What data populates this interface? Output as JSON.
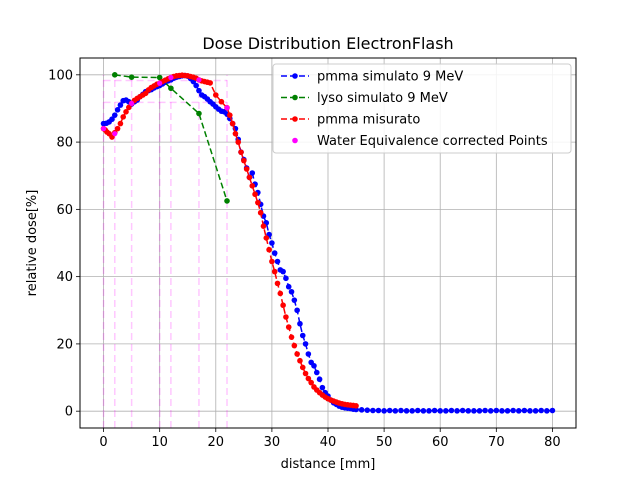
{
  "chart_data": {
    "type": "line",
    "title": "Dose Distribution ElectronFlash",
    "xlabel": "distance [mm]",
    "ylabel": "relative dose[%]",
    "xlim": [
      -4.2,
      84.2
    ],
    "ylim": [
      -5,
      105
    ],
    "xticks": [
      0,
      10,
      20,
      30,
      40,
      50,
      60,
      70,
      80
    ],
    "yticks": [
      0,
      20,
      40,
      60,
      80,
      100
    ],
    "grid": true,
    "legend_position": "top-right",
    "colors": {
      "pmma_sim": "#0000ff",
      "lyso_sim": "#008000",
      "pmma_mis": "#ff0000",
      "water_eq": "#ff00ff",
      "grid": "#b0b0b0"
    },
    "series": [
      {
        "name": "pmma simulato 9 MeV",
        "style": "dashed-dot",
        "color": "#0000ff",
        "x": [
          0.0,
          0.5,
          1.0,
          1.5,
          2.0,
          2.5,
          3.0,
          3.5,
          4.0,
          4.5,
          5.0,
          5.5,
          6.0,
          6.5,
          7.0,
          7.5,
          8.0,
          8.5,
          9.0,
          9.5,
          10.0,
          10.5,
          11.0,
          11.5,
          12.0,
          12.5,
          13.0,
          13.5,
          14.0,
          14.5,
          15.0,
          15.5,
          16.0,
          16.5,
          17.0,
          17.5,
          18.0,
          18.5,
          19.0,
          19.5,
          20.0,
          20.5,
          21.0,
          21.5,
          22.0,
          22.5,
          23.0,
          23.5,
          24.0,
          24.5,
          25.0,
          25.5,
          26.0,
          26.5,
          27.0,
          27.5,
          28.0,
          28.5,
          29.0,
          29.5,
          30.0,
          30.5,
          31.0,
          31.5,
          32.0,
          32.5,
          33.0,
          33.5,
          34.0,
          34.5,
          35.0,
          35.5,
          36.0,
          36.5,
          37.0,
          37.5,
          38.0,
          38.5,
          39.0,
          39.5,
          40.0,
          40.5,
          41.0,
          41.5,
          42.0,
          42.5,
          43.0,
          43.5,
          44.0,
          44.5,
          45.0,
          46.0,
          47.0,
          48.0,
          49.0,
          50.0,
          51.0,
          52.0,
          53.0,
          54.0,
          55.0,
          56.0,
          57.0,
          58.0,
          59.0,
          60.0,
          61.0,
          62.0,
          63.0,
          64.0,
          65.0,
          66.0,
          67.0,
          68.0,
          69.0,
          70.0,
          71.0,
          72.0,
          73.0,
          74.0,
          75.0,
          76.0,
          77.0,
          78.0,
          79.0,
          80.0
        ],
        "y": [
          85.5,
          85.6,
          86.0,
          86.8,
          88.0,
          89.6,
          91.0,
          92.3,
          92.5,
          92.0,
          91.3,
          92.0,
          92.5,
          93.5,
          94.2,
          95.0,
          95.3,
          95.6,
          96.1,
          96.5,
          96.8,
          97.3,
          97.8,
          98.2,
          98.5,
          99.0,
          99.3,
          99.5,
          99.7,
          99.8,
          99.6,
          98.9,
          98.0,
          96.8,
          95.3,
          94.0,
          93.5,
          92.8,
          92.0,
          91.3,
          90.5,
          89.8,
          89.2,
          89.0,
          88.3,
          87.0,
          85.5,
          84.0,
          80.8,
          77.0,
          74.8,
          72.3,
          69.5,
          70.8,
          67.5,
          65.0,
          61.5,
          58.0,
          56.0,
          52.5,
          50.0,
          47.0,
          44.5,
          42.0,
          41.5,
          39.5,
          37.0,
          35.5,
          33.0,
          30.0,
          26.0,
          22.5,
          20.0,
          17.0,
          14.5,
          13.5,
          11.5,
          9.5,
          7.0,
          5.5,
          4.5,
          3.3,
          2.5,
          2.0,
          1.5,
          1.2,
          1.0,
          0.9,
          0.8,
          0.6,
          0.5,
          0.4,
          0.3,
          0.2,
          0.2,
          0.1,
          0.2,
          0.1,
          0.2,
          0.1,
          0.1,
          0.2,
          0.1,
          0.1,
          0.2,
          0.1,
          0.1,
          0.2,
          0.1,
          0.2,
          0.1,
          0.1,
          0.1,
          0.2,
          0.1,
          0.2,
          0.1,
          0.1,
          0.2,
          0.1,
          0.2,
          0.1,
          0.1,
          0.2,
          0.1,
          0.2
        ]
      },
      {
        "name": "lyso simulato 9 MeV",
        "style": "dashed-dot",
        "color": "#008000",
        "x": [
          2.0,
          5.0,
          10.0,
          12.0,
          17.0,
          22.0
        ],
        "y": [
          100.0,
          99.3,
          99.2,
          96.0,
          88.5,
          62.5
        ]
      },
      {
        "name": "pmma misurato",
        "style": "dashed-dot",
        "color": "#ff0000",
        "x": [
          0.0,
          0.3,
          0.6,
          1.0,
          1.5,
          2.0,
          2.5,
          3.0,
          3.5,
          4.0,
          4.5,
          5.0,
          5.5,
          6.0,
          6.5,
          7.0,
          7.5,
          8.0,
          8.5,
          9.0,
          9.5,
          10.0,
          10.5,
          11.0,
          11.5,
          12.0,
          12.5,
          13.0,
          13.5,
          14.0,
          14.5,
          15.0,
          15.5,
          16.0,
          16.5,
          17.0,
          17.5,
          18.0,
          18.5,
          19.0,
          20.0,
          21.0,
          22.0,
          22.5,
          23.0,
          23.5,
          24.0,
          24.5,
          25.0,
          25.5,
          26.0,
          26.5,
          27.0,
          27.5,
          28.0,
          28.5,
          29.0,
          29.5,
          30.0,
          30.5,
          31.0,
          31.5,
          32.0,
          32.5,
          33.0,
          33.5,
          34.0,
          34.5,
          35.0,
          35.5,
          36.0,
          36.5,
          37.0,
          37.5,
          38.0,
          38.5,
          39.0,
          39.5,
          40.0,
          40.5,
          41.0,
          41.5,
          42.0,
          42.5,
          43.0,
          43.5,
          44.0,
          44.5,
          45.0
        ],
        "y": [
          84.0,
          83.6,
          83.0,
          82.5,
          81.5,
          82.8,
          84.0,
          85.5,
          87.5,
          89.0,
          90.3,
          91.5,
          92.4,
          93.0,
          93.5,
          94.0,
          94.5,
          95.5,
          96.2,
          96.7,
          97.2,
          97.5,
          98.0,
          98.4,
          98.8,
          99.2,
          99.5,
          99.7,
          99.8,
          99.9,
          99.8,
          99.7,
          99.5,
          99.3,
          99.0,
          98.5,
          98.2,
          98.0,
          97.8,
          97.6,
          94.0,
          92.0,
          90.2,
          88.0,
          85.5,
          82.5,
          80.0,
          77.0,
          74.5,
          72.0,
          69.5,
          67.0,
          64.5,
          62.0,
          59.0,
          55.0,
          51.5,
          48.0,
          44.5,
          41.5,
          38.0,
          35.0,
          31.5,
          28.0,
          25.0,
          22.0,
          19.5,
          17.0,
          15.0,
          13.0,
          11.2,
          9.7,
          8.5,
          7.2,
          6.3,
          5.5,
          4.8,
          4.2,
          3.7,
          3.3,
          3.0,
          2.7,
          2.4,
          2.2,
          2.0,
          1.9,
          1.8,
          1.7,
          1.6
        ]
      }
    ],
    "water_equivalence": {
      "name": "Water Equivalence corrected Points",
      "color": "#ff00ff",
      "points": [
        {
          "x": 0.0,
          "y": 84.0
        },
        {
          "x": 2.0,
          "y": 82.5
        },
        {
          "x": 5.0,
          "y": 91.5
        },
        {
          "x": 10.0,
          "y": 97.5
        },
        {
          "x": 12.0,
          "y": 99.2
        },
        {
          "x": 17.0,
          "y": 98.5
        },
        {
          "x": 22.0,
          "y": 90.2
        }
      ],
      "vlines": [
        0.0,
        2.0,
        5.0,
        10.0,
        12.0,
        17.0,
        22.0
      ],
      "hlines": [
        {
          "y": 98.3,
          "x0": 0.0,
          "x1": 22.0
        },
        {
          "y": 91.8,
          "x0": 0.0,
          "x1": 22.0
        }
      ]
    }
  }
}
